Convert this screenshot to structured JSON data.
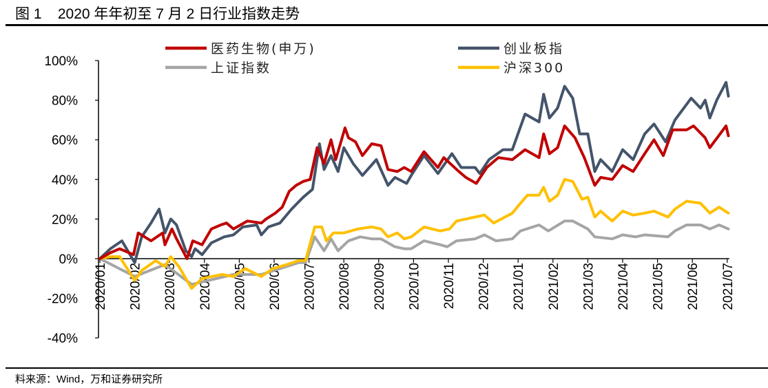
{
  "header": {
    "title": "图 1    2020 年年初至 7 月 2 日行业指数走势"
  },
  "footer": {
    "source": "料来源：Wind，万和证券研究所"
  },
  "chart_data": {
    "type": "line",
    "title": "",
    "xlabel": "",
    "ylabel": "",
    "ylim": [
      -40,
      100
    ],
    "yticks": [
      "-40%",
      "-20%",
      "0%",
      "20%",
      "40%",
      "60%",
      "80%",
      "100%"
    ],
    "ytick_values": [
      -40,
      -20,
      0,
      20,
      40,
      60,
      80,
      100
    ],
    "xticks": [
      "2020/01",
      "2020/02",
      "2020/03",
      "2020/04",
      "2020/05",
      "2020/06",
      "2020/07",
      "2020/08",
      "2020/09",
      "2020/10",
      "2020/11",
      "2020/12",
      "2021/01",
      "2021/02",
      "2021/03",
      "2021/04",
      "2021/05",
      "2021/06",
      "2021/07"
    ],
    "xlim": [
      "2020-01-01",
      "2021-07-02"
    ],
    "grid": false,
    "legend_placement": "top",
    "series": [
      {
        "name": "医药生物(申万)",
        "color": "#C00000",
        "points": [
          [
            "2020-01-01",
            0
          ],
          [
            "2020-01-10",
            3
          ],
          [
            "2020-01-18",
            5
          ],
          [
            "2020-01-30",
            2
          ],
          [
            "2020-02-04",
            13
          ],
          [
            "2020-02-15",
            9
          ],
          [
            "2020-02-25",
            13
          ],
          [
            "2020-02-27",
            7
          ],
          [
            "2020-03-03",
            15
          ],
          [
            "2020-03-07",
            10
          ],
          [
            "2020-03-16",
            0
          ],
          [
            "2020-03-21",
            9
          ],
          [
            "2020-03-29",
            7
          ],
          [
            "2020-04-07",
            15
          ],
          [
            "2020-04-15",
            17
          ],
          [
            "2020-04-20",
            18
          ],
          [
            "2020-04-26",
            15
          ],
          [
            "2020-05-08",
            19
          ],
          [
            "2020-05-20",
            18
          ],
          [
            "2020-05-24",
            20
          ],
          [
            "2020-06-02",
            23
          ],
          [
            "2020-06-08",
            26
          ],
          [
            "2020-06-14",
            34
          ],
          [
            "2020-06-20",
            37
          ],
          [
            "2020-06-26",
            39
          ],
          [
            "2020-07-02",
            40
          ],
          [
            "2020-07-08",
            56
          ],
          [
            "2020-07-14",
            48
          ],
          [
            "2020-07-20",
            60
          ],
          [
            "2020-07-24",
            50
          ],
          [
            "2020-08-02",
            66
          ],
          [
            "2020-08-05",
            61
          ],
          [
            "2020-08-11",
            59
          ],
          [
            "2020-08-17",
            52
          ],
          [
            "2020-08-25",
            58
          ],
          [
            "2020-09-03",
            57
          ],
          [
            "2020-09-09",
            45
          ],
          [
            "2020-09-17",
            44
          ],
          [
            "2020-09-23",
            46
          ],
          [
            "2020-09-29",
            44
          ],
          [
            "2020-10-10",
            54
          ],
          [
            "2020-10-22",
            46
          ],
          [
            "2020-10-27",
            51
          ],
          [
            "2020-11-10",
            44
          ],
          [
            "2020-11-16",
            41
          ],
          [
            "2020-11-25",
            38
          ],
          [
            "2020-12-04",
            46
          ],
          [
            "2020-12-14",
            51
          ],
          [
            "2020-12-26",
            50
          ],
          [
            "2021-01-07",
            55
          ],
          [
            "2021-01-19",
            51
          ],
          [
            "2021-01-23",
            63
          ],
          [
            "2021-01-28",
            53
          ],
          [
            "2021-02-05",
            56
          ],
          [
            "2021-02-11",
            67
          ],
          [
            "2021-02-20",
            61
          ],
          [
            "2021-02-28",
            51
          ],
          [
            "2021-03-07",
            37
          ],
          [
            "2021-03-12",
            41
          ],
          [
            "2021-03-22",
            40
          ],
          [
            "2021-03-31",
            47
          ],
          [
            "2021-04-10",
            44
          ],
          [
            "2021-04-20",
            53
          ],
          [
            "2021-04-28",
            60
          ],
          [
            "2021-05-06",
            52
          ],
          [
            "2021-05-14",
            65
          ],
          [
            "2021-05-26",
            65
          ],
          [
            "2021-06-02",
            67
          ],
          [
            "2021-06-12",
            61
          ],
          [
            "2021-06-16",
            56
          ],
          [
            "2021-06-30",
            67
          ],
          [
            "2021-07-02",
            62
          ]
        ]
      },
      {
        "name": "创业板指",
        "color": "#44546A",
        "points": [
          [
            "2020-01-01",
            0
          ],
          [
            "2020-01-10",
            5
          ],
          [
            "2020-01-20",
            9
          ],
          [
            "2020-02-01",
            -2
          ],
          [
            "2020-02-07",
            11
          ],
          [
            "2020-02-15",
            18
          ],
          [
            "2020-02-22",
            25
          ],
          [
            "2020-02-27",
            13
          ],
          [
            "2020-03-02",
            20
          ],
          [
            "2020-03-07",
            17
          ],
          [
            "2020-03-15",
            4
          ],
          [
            "2020-03-20",
            1
          ],
          [
            "2020-03-23",
            5
          ],
          [
            "2020-03-29",
            2
          ],
          [
            "2020-04-07",
            8
          ],
          [
            "2020-04-18",
            11
          ],
          [
            "2020-04-26",
            12
          ],
          [
            "2020-05-04",
            16
          ],
          [
            "2020-05-16",
            17
          ],
          [
            "2020-05-20",
            12
          ],
          [
            "2020-05-26",
            16
          ],
          [
            "2020-06-06",
            18
          ],
          [
            "2020-06-16",
            25
          ],
          [
            "2020-06-26",
            31
          ],
          [
            "2020-07-04",
            35
          ],
          [
            "2020-07-10",
            58
          ],
          [
            "2020-07-14",
            45
          ],
          [
            "2020-07-20",
            52
          ],
          [
            "2020-07-26",
            44
          ],
          [
            "2020-08-01",
            56
          ],
          [
            "2020-08-09",
            48
          ],
          [
            "2020-08-17",
            42
          ],
          [
            "2020-08-29",
            50
          ],
          [
            "2020-09-09",
            37
          ],
          [
            "2020-09-15",
            41
          ],
          [
            "2020-09-25",
            38
          ],
          [
            "2020-09-29",
            42
          ],
          [
            "2020-10-10",
            52
          ],
          [
            "2020-10-22",
            43
          ],
          [
            "2020-11-04",
            53
          ],
          [
            "2020-11-12",
            46
          ],
          [
            "2020-11-24",
            46
          ],
          [
            "2020-11-28",
            43
          ],
          [
            "2020-12-06",
            50
          ],
          [
            "2020-12-18",
            55
          ],
          [
            "2020-12-26",
            55
          ],
          [
            "2021-01-07",
            73
          ],
          [
            "2021-01-19",
            69
          ],
          [
            "2021-01-23",
            83
          ],
          [
            "2021-01-28",
            71
          ],
          [
            "2021-02-05",
            76
          ],
          [
            "2021-02-11",
            87
          ],
          [
            "2021-02-18",
            81
          ],
          [
            "2021-02-24",
            63
          ],
          [
            "2021-03-01",
            63
          ],
          [
            "2021-03-07",
            44
          ],
          [
            "2021-03-12",
            50
          ],
          [
            "2021-03-22",
            44
          ],
          [
            "2021-03-31",
            55
          ],
          [
            "2021-04-10",
            50
          ],
          [
            "2021-04-20",
            63
          ],
          [
            "2021-04-28",
            68
          ],
          [
            "2021-05-08",
            59
          ],
          [
            "2021-05-16",
            70
          ],
          [
            "2021-05-30",
            81
          ],
          [
            "2021-06-08",
            76
          ],
          [
            "2021-06-12",
            80
          ],
          [
            "2021-06-16",
            71
          ],
          [
            "2021-06-22",
            80
          ],
          [
            "2021-06-30",
            89
          ],
          [
            "2021-07-02",
            82
          ]
        ]
      },
      {
        "name": "上证指数",
        "color": "#A5A5A5",
        "points": [
          [
            "2020-01-01",
            0
          ],
          [
            "2020-02-01",
            -9
          ],
          [
            "2020-02-27",
            -3
          ],
          [
            "2020-03-20",
            -13
          ],
          [
            "2020-04-26",
            -8
          ],
          [
            "2020-05-20",
            -8
          ],
          [
            "2020-06-22",
            -2
          ],
          [
            "2020-06-28",
            -2
          ],
          [
            "2020-07-06",
            11
          ],
          [
            "2020-07-14",
            4
          ],
          [
            "2020-07-20",
            10
          ],
          [
            "2020-07-26",
            4
          ],
          [
            "2020-08-05",
            9
          ],
          [
            "2020-08-15",
            11
          ],
          [
            "2020-08-25",
            10
          ],
          [
            "2020-09-03",
            10
          ],
          [
            "2020-09-15",
            6
          ],
          [
            "2020-09-23",
            5
          ],
          [
            "2020-09-29",
            5
          ],
          [
            "2020-10-10",
            9
          ],
          [
            "2020-10-24",
            7
          ],
          [
            "2020-10-30",
            6
          ],
          [
            "2020-11-08",
            9
          ],
          [
            "2020-11-24",
            10
          ],
          [
            "2020-12-02",
            12
          ],
          [
            "2020-12-12",
            9
          ],
          [
            "2020-12-26",
            10
          ],
          [
            "2021-01-03",
            14
          ],
          [
            "2021-01-19",
            17
          ],
          [
            "2021-01-27",
            14
          ],
          [
            "2021-02-11",
            19
          ],
          [
            "2021-02-18",
            19
          ],
          [
            "2021-03-01",
            15
          ],
          [
            "2021-03-07",
            11
          ],
          [
            "2021-03-22",
            10
          ],
          [
            "2021-03-31",
            12
          ],
          [
            "2021-04-12",
            11
          ],
          [
            "2021-04-20",
            12
          ],
          [
            "2021-05-10",
            11
          ],
          [
            "2021-05-16",
            14
          ],
          [
            "2021-05-26",
            17
          ],
          [
            "2021-06-08",
            17
          ],
          [
            "2021-06-16",
            15
          ],
          [
            "2021-06-24",
            17
          ],
          [
            "2021-07-02",
            15
          ]
        ]
      },
      {
        "name": "沪深300",
        "color": "#FFC000",
        "points": [
          [
            "2020-01-01",
            0
          ],
          [
            "2020-01-10",
            1
          ],
          [
            "2020-01-18",
            1
          ],
          [
            "2020-02-01",
            -11
          ],
          [
            "2020-02-07",
            -6
          ],
          [
            "2020-02-19",
            -1
          ],
          [
            "2020-02-27",
            -4
          ],
          [
            "2020-03-02",
            1
          ],
          [
            "2020-03-09",
            -4
          ],
          [
            "2020-03-20",
            -15
          ],
          [
            "2020-03-29",
            -10
          ],
          [
            "2020-04-16",
            -8
          ],
          [
            "2020-04-26",
            -9
          ],
          [
            "2020-05-06",
            -5
          ],
          [
            "2020-05-20",
            -9
          ],
          [
            "2020-05-30",
            -5
          ],
          [
            "2020-06-12",
            -3
          ],
          [
            "2020-06-22",
            -1
          ],
          [
            "2020-06-28",
            -1
          ],
          [
            "2020-07-06",
            16
          ],
          [
            "2020-07-12",
            16
          ],
          [
            "2020-07-16",
            9
          ],
          [
            "2020-07-22",
            13
          ],
          [
            "2020-08-01",
            13
          ],
          [
            "2020-08-13",
            15
          ],
          [
            "2020-08-25",
            16
          ],
          [
            "2020-09-03",
            15
          ],
          [
            "2020-09-09",
            11
          ],
          [
            "2020-09-17",
            13
          ],
          [
            "2020-09-23",
            10
          ],
          [
            "2020-09-29",
            11
          ],
          [
            "2020-10-10",
            16
          ],
          [
            "2020-10-24",
            14
          ],
          [
            "2020-11-02",
            15
          ],
          [
            "2020-11-08",
            19
          ],
          [
            "2020-11-24",
            21
          ],
          [
            "2020-12-02",
            22
          ],
          [
            "2020-12-10",
            18
          ],
          [
            "2020-12-26",
            23
          ],
          [
            "2021-01-03",
            28
          ],
          [
            "2021-01-09",
            32
          ],
          [
            "2021-01-19",
            32
          ],
          [
            "2021-01-23",
            36
          ],
          [
            "2021-01-28",
            29
          ],
          [
            "2021-02-05",
            32
          ],
          [
            "2021-02-11",
            40
          ],
          [
            "2021-02-18",
            39
          ],
          [
            "2021-02-26",
            30
          ],
          [
            "2021-03-01",
            31
          ],
          [
            "2021-03-07",
            21
          ],
          [
            "2021-03-12",
            24
          ],
          [
            "2021-03-22",
            19
          ],
          [
            "2021-03-31",
            24
          ],
          [
            "2021-04-10",
            22
          ],
          [
            "2021-04-20",
            23
          ],
          [
            "2021-04-28",
            24
          ],
          [
            "2021-05-10",
            21
          ],
          [
            "2021-05-16",
            25
          ],
          [
            "2021-05-26",
            29
          ],
          [
            "2021-06-08",
            28
          ],
          [
            "2021-06-16",
            23
          ],
          [
            "2021-06-24",
            26
          ],
          [
            "2021-07-02",
            23
          ]
        ]
      }
    ]
  }
}
